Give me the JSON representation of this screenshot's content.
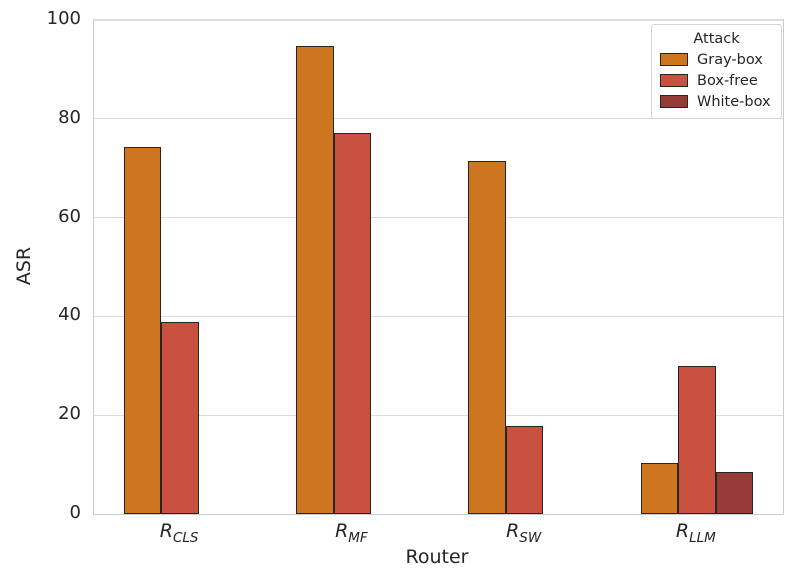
{
  "chart_data": {
    "type": "bar",
    "title": "",
    "xlabel": "Router",
    "ylabel": "ASR",
    "ylim": [
      0,
      100
    ],
    "yticks": [
      0,
      20,
      40,
      60,
      80,
      100
    ],
    "grid": true,
    "legend_title": "Attack",
    "legend_position": "upper-right",
    "categories": [
      "R_CLS",
      "R_MF",
      "R_SW",
      "R_LLM"
    ],
    "categories_display": [
      {
        "base": "R",
        "sub": "CLS"
      },
      {
        "base": "R",
        "sub": "MF"
      },
      {
        "base": "R",
        "sub": "SW"
      },
      {
        "base": "R",
        "sub": "LLM"
      }
    ],
    "series": [
      {
        "name": "Gray-box",
        "color": "#CE761F",
        "values": [
          74.2,
          94.8,
          71.4,
          10.4
        ]
      },
      {
        "name": "Box-free",
        "color": "#C8513F",
        "values": [
          38.8,
          77.2,
          17.8,
          30.0
        ]
      },
      {
        "name": "White-box",
        "color": "#963B35",
        "values": [
          0,
          0,
          0,
          8.6
        ]
      }
    ],
    "bar_edge_color": "#262626",
    "grid_color": "#DCDCDC",
    "spine_color": "#CCCCCC",
    "text_color": "#262626"
  }
}
